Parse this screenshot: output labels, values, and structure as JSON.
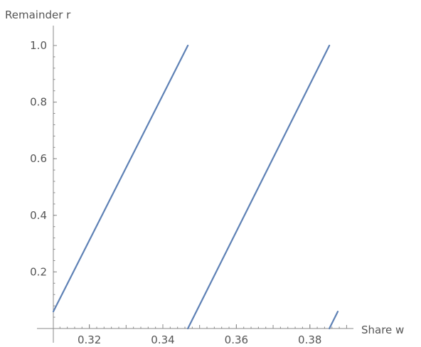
{
  "chart_data": {
    "type": "line",
    "title": "",
    "xlabel": "Share w",
    "ylabel": "Remainder r",
    "xlim": [
      0.3102,
      0.3905
    ],
    "ylim": [
      0,
      1.0
    ],
    "x_ticks": [
      0.32,
      0.34,
      0.36,
      0.38
    ],
    "x_tick_labels": [
      "0.32",
      "0.34",
      "0.36",
      "0.38"
    ],
    "y_ticks": [
      0.2,
      0.4,
      0.6,
      0.8,
      1.0
    ],
    "y_tick_labels": [
      "0.2",
      "0.4",
      "0.6",
      "0.8",
      "1.0"
    ],
    "grid": false,
    "legend": "none",
    "colors": {
      "line": "#5E81B5",
      "axis": "#888888",
      "text": "#555555"
    },
    "segments": [
      {
        "x": [
          0.3102,
          0.3468
        ],
        "y": [
          0.06,
          1.0
        ]
      },
      {
        "x": [
          0.3468,
          0.3853
        ],
        "y": [
          0.0,
          1.0
        ]
      },
      {
        "x": [
          0.3853,
          0.3876
        ],
        "y": [
          0.0,
          0.06
        ]
      }
    ]
  }
}
